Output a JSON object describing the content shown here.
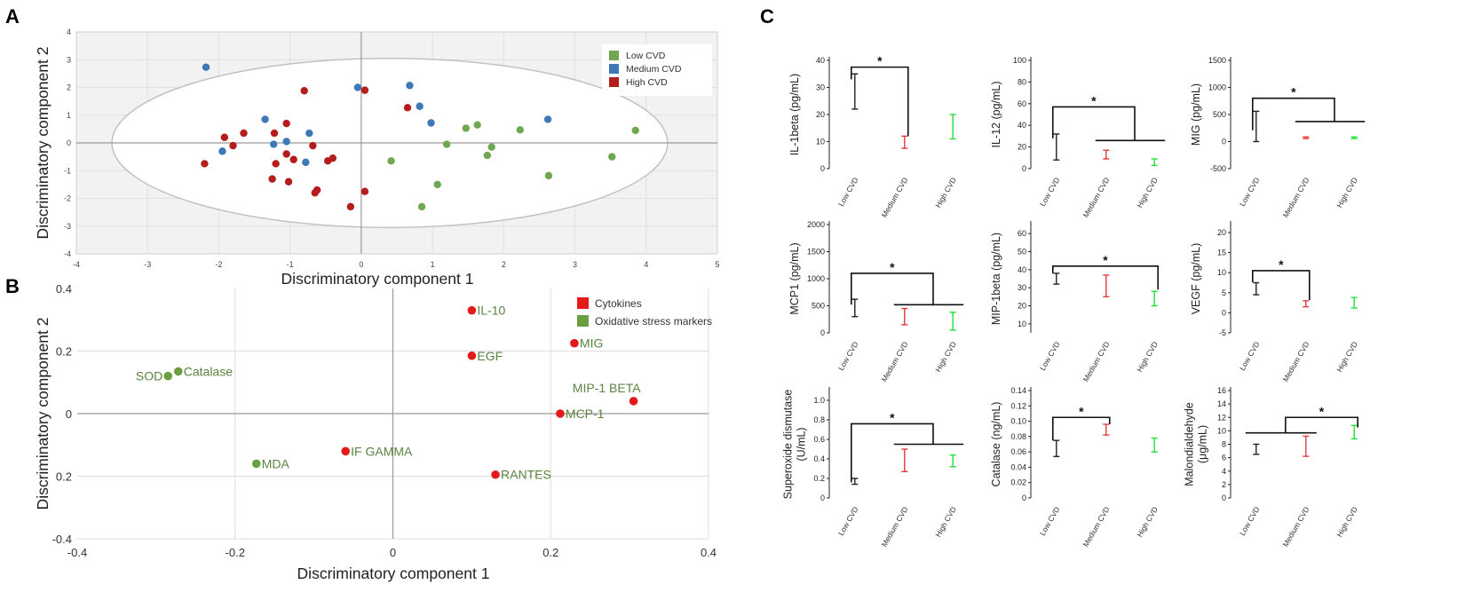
{
  "colors": {
    "low": "#70a852",
    "medium": "#3d78b7",
    "high": "#b51c1c",
    "cytokine": "#e31b1b",
    "oxidative": "#6a9e3f",
    "textGreen": "#5b8340",
    "barLow": "#222222",
    "barMedium": "#e23a3a",
    "barHigh": "#22e03a"
  },
  "chart_data": [
    {
      "panel": "A",
      "type": "scatter",
      "xlabel": "Discriminatory component 1",
      "ylabel": "Discriminatory component 2",
      "xlim": [
        -4,
        5
      ],
      "ylim": [
        -4,
        4
      ],
      "xticks": [
        "-4",
        "-3",
        "-2",
        "-1",
        "0",
        "1",
        "2",
        "3",
        "4",
        "5"
      ],
      "yticks": [
        "-4",
        "-3",
        "-2",
        "-1",
        "0",
        "1",
        "2",
        "3",
        "4"
      ],
      "ellipse": {
        "cx": 0.4,
        "cy": 0,
        "rx": 3.9,
        "ry": 3.05
      },
      "legend": [
        "Low CVD",
        "Medium CVD",
        "High CVD"
      ],
      "series": [
        {
          "name": "Low CVD",
          "colorKey": "low",
          "points": [
            [
              0.42,
              -0.65
            ],
            [
              0.85,
              -2.3
            ],
            [
              1.07,
              -1.5
            ],
            [
              1.2,
              -0.05
            ],
            [
              1.47,
              0.53
            ],
            [
              1.63,
              0.65
            ],
            [
              1.77,
              -0.45
            ],
            [
              1.83,
              -0.15
            ],
            [
              2.23,
              0.47
            ],
            [
              2.63,
              -1.18
            ],
            [
              3.52,
              -0.5
            ],
            [
              3.85,
              0.45
            ]
          ]
        },
        {
          "name": "Medium CVD",
          "colorKey": "medium",
          "points": [
            [
              -2.18,
              2.73
            ],
            [
              -1.95,
              -0.3
            ],
            [
              -1.35,
              0.85
            ],
            [
              -1.23,
              -0.05
            ],
            [
              -1.05,
              0.05
            ],
            [
              -0.78,
              -0.7
            ],
            [
              -0.73,
              0.35
            ],
            [
              -0.05,
              2.0
            ],
            [
              0.68,
              2.07
            ],
            [
              0.82,
              1.32
            ],
            [
              0.98,
              0.72
            ],
            [
              2.62,
              0.85
            ]
          ]
        },
        {
          "name": "High CVD",
          "colorKey": "high",
          "points": [
            [
              -2.2,
              -0.75
            ],
            [
              -1.92,
              0.2
            ],
            [
              -1.8,
              -0.1
            ],
            [
              -1.65,
              0.35
            ],
            [
              -1.25,
              -1.3
            ],
            [
              -1.22,
              0.35
            ],
            [
              -1.2,
              -0.75
            ],
            [
              -1.05,
              0.7
            ],
            [
              -1.05,
              -0.4
            ],
            [
              -1.02,
              -1.4
            ],
            [
              -0.95,
              -0.6
            ],
            [
              -0.8,
              1.88
            ],
            [
              -0.68,
              -0.1
            ],
            [
              -0.65,
              -1.8
            ],
            [
              -0.62,
              -1.7
            ],
            [
              -0.47,
              -0.65
            ],
            [
              -0.4,
              -0.55
            ],
            [
              -0.15,
              -2.3
            ],
            [
              0.05,
              1.9
            ],
            [
              0.05,
              -1.75
            ],
            [
              0.65,
              1.27
            ]
          ]
        }
      ]
    },
    {
      "panel": "B",
      "type": "scatter",
      "xlabel": "Discriminatory component 1",
      "ylabel": "Discriminatory component 2",
      "xlim": [
        -0.4,
        0.4
      ],
      "ylim": [
        -0.4,
        0.4
      ],
      "xticks": [
        "-0.4",
        "-0.2",
        "0",
        "0.2",
        "0.4"
      ],
      "yticks": [
        "0.4",
        "0.2",
        "0",
        "0.2",
        "-0.4"
      ],
      "legend": [
        "Cytokines",
        "Oxidative stress markers"
      ],
      "points": [
        {
          "label": "IL-10",
          "group": "cytokine",
          "x": 0.1,
          "y": 0.33,
          "pos": "right"
        },
        {
          "label": "MIG",
          "group": "cytokine",
          "x": 0.23,
          "y": 0.225,
          "pos": "right"
        },
        {
          "label": "EGF",
          "group": "cytokine",
          "x": 0.1,
          "y": 0.185,
          "pos": "right"
        },
        {
          "label": "MIP-1 BETA",
          "group": "cytokine",
          "x": 0.305,
          "y": 0.04,
          "pos": "above"
        },
        {
          "label": "MCP-1",
          "group": "cytokine",
          "x": 0.212,
          "y": 0.0,
          "pos": "right"
        },
        {
          "label": "IF GAMMA",
          "group": "cytokine",
          "x": -0.06,
          "y": -0.12,
          "pos": "right"
        },
        {
          "label": "RANTES",
          "group": "cytokine",
          "x": 0.13,
          "y": -0.195,
          "pos": "right"
        },
        {
          "label": "SOD",
          "group": "oxidative",
          "x": -0.285,
          "y": 0.12,
          "pos": "left"
        },
        {
          "label": "Catalase",
          "group": "oxidative",
          "x": -0.272,
          "y": 0.135,
          "pos": "right"
        },
        {
          "label": "MDA",
          "group": "oxidative",
          "x": -0.173,
          "y": -0.16,
          "pos": "right"
        }
      ]
    },
    {
      "panel": "C",
      "type": "errorbar",
      "categories": [
        "Low CVD",
        "Medium CVD",
        "High CVD"
      ],
      "panels": [
        {
          "ylabel": [
            "IL-1beta (pg/mL)"
          ],
          "ymin": 0,
          "ymax": 40,
          "ticks": [
            0,
            10,
            20,
            30,
            40
          ],
          "bars": [
            [
              22,
              35
            ],
            [
              7.5,
              12
            ],
            [
              11,
              20
            ]
          ],
          "sig": {
            "type": "single",
            "left": 0,
            "right": 1,
            "level": 37.5,
            "lh": 33,
            "rh": 12
          }
        },
        {
          "ylabel": [
            "IL-12 (pg/mL)"
          ],
          "ymin": 0,
          "ymax": 100,
          "ticks": [
            0,
            20,
            40,
            60,
            80,
            100
          ],
          "bars": [
            [
              8,
              32
            ],
            [
              9,
              17
            ],
            [
              3,
              9
            ]
          ],
          "sig": {
            "type": "group",
            "left": 0,
            "gs": 1,
            "ge": 2,
            "level": 57,
            "lh": 28,
            "gy": 26
          }
        },
        {
          "ylabel": [
            "MIG (pg/mL)"
          ],
          "ymin": -500,
          "ymax": 1500,
          "ticks": [
            -500,
            0,
            500,
            1000,
            1500
          ],
          "bars": [
            [
              0,
              560
            ],
            [
              55,
              85
            ],
            [
              55,
              85
            ]
          ],
          "sig": {
            "type": "group",
            "left": 0,
            "gs": 1,
            "ge": 2,
            "level": 800,
            "lh": 210,
            "gy": 370
          }
        },
        {
          "ylabel": [
            "MCP1 (pg/mL)"
          ],
          "ymin": 0,
          "ymax": 2000,
          "ticks": [
            0,
            500,
            1000,
            1500,
            2000
          ],
          "bars": [
            [
              300,
              620
            ],
            [
              150,
              450
            ],
            [
              50,
              380
            ]
          ],
          "sig": {
            "type": "group",
            "left": 0,
            "gs": 1,
            "ge": 2,
            "level": 1100,
            "lh": 520,
            "gy": 520
          }
        },
        {
          "ylabel": [
            "MIP-1beta (pg/mL)"
          ],
          "ymin": 5,
          "ymax": 65,
          "ticks": [
            10,
            20,
            30,
            40,
            50,
            60
          ],
          "bars": [
            [
              32,
              38
            ],
            [
              25,
              37
            ],
            [
              20,
              28
            ]
          ],
          "sig": {
            "type": "single",
            "left": 0,
            "right": 2,
            "level": 42,
            "lh": 38,
            "rh": 29
          }
        },
        {
          "ylabel": [
            "VEGF (pg/mL)"
          ],
          "ymin": -5,
          "ymax": 22,
          "ticks": [
            -5,
            0,
            5,
            10,
            15,
            20
          ],
          "bars": [
            [
              4.5,
              7.5
            ],
            [
              1.5,
              3
            ],
            [
              1.2,
              3.8
            ]
          ],
          "sig": {
            "type": "single",
            "left": 0,
            "right": 1,
            "level": 10.5,
            "lh": 7.6,
            "rh": 3.2
          }
        },
        {
          "ylabel": [
            "Superoxide dismutase",
            "(U/mL)"
          ],
          "ymin": 0,
          "ymax": 1.1,
          "ticks": [
            0,
            0.2,
            0.4,
            0.6,
            0.8,
            1.0
          ],
          "tickLabels": [
            "0",
            "0.2",
            "0.4",
            "0.6",
            "0.8",
            "1.0"
          ],
          "bars": [
            [
              0.14,
              0.2
            ],
            [
              0.27,
              0.5
            ],
            [
              0.32,
              0.44
            ]
          ],
          "sig": {
            "type": "group",
            "left": 0,
            "gs": 1,
            "ge": 2,
            "level": 0.76,
            "lh": 0.16,
            "gy": 0.55
          }
        },
        {
          "ylabel": [
            "Catalase (ng/mL)"
          ],
          "ymin": 0,
          "ymax": 0.14,
          "ticks": [
            0,
            0.02,
            0.04,
            0.06,
            0.08,
            0.1,
            0.12,
            0.14
          ],
          "tickLabels": [
            "0",
            "0.02",
            "0.04",
            "0.06",
            "0.08",
            "0.10",
            "0.12",
            "0.14"
          ],
          "bars": [
            [
              0.054,
              0.075
            ],
            [
              0.082,
              0.096
            ],
            [
              0.06,
              0.078
            ]
          ],
          "sig": {
            "type": "single",
            "left": 0,
            "right": 1,
            "level": 0.105,
            "lh": 0.075,
            "rh": 0.096
          }
        },
        {
          "ylabel": [
            "Malondialdehyde",
            "(μg/mL)"
          ],
          "ymin": 0,
          "ymax": 16,
          "ticks": [
            0,
            2,
            4,
            6,
            8,
            10,
            12,
            14,
            16
          ],
          "bars": [
            [
              6.5,
              8
            ],
            [
              6.2,
              9.2
            ],
            [
              8.8,
              10.8
            ]
          ],
          "sig": {
            "type": "group",
            "right": 2,
            "gs": 0,
            "ge": 1,
            "level": 12,
            "rh": 10.5,
            "gy": 9.7
          }
        }
      ]
    }
  ],
  "panel_labels": [
    "A",
    "B",
    "C"
  ],
  "significance_symbol": "*"
}
